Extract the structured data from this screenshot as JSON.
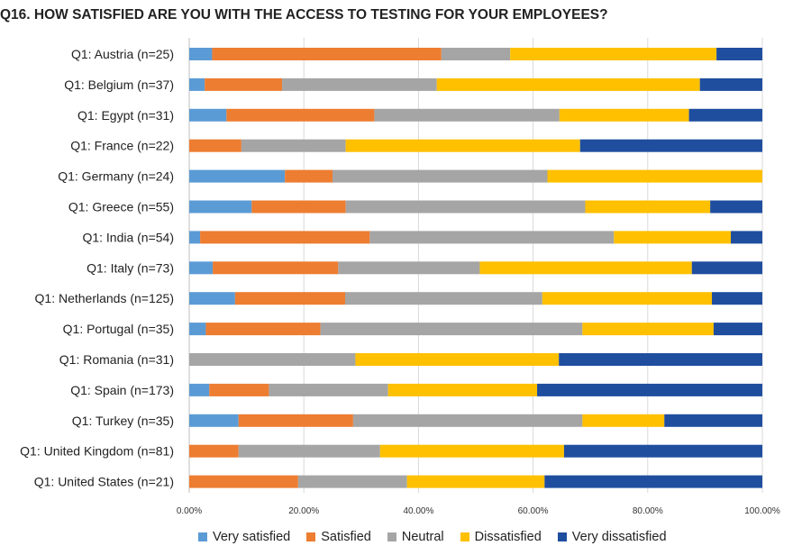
{
  "chart_data": {
    "type": "bar",
    "orientation": "horizontal",
    "stacked": true,
    "title": "Q16. HOW SATISFIED ARE YOU WITH THE ACCESS TO TESTING FOR YOUR EMPLOYEES?",
    "xlabel": "",
    "ylabel": "",
    "xlim": [
      0,
      100
    ],
    "x_ticks": [
      "0.00%",
      "20.00%",
      "40.00%",
      "60.00%",
      "80.00%",
      "100.00%"
    ],
    "grid": true,
    "legend_position": "bottom",
    "categories": [
      "Q1: Austria (n=25)",
      "Q1: Belgium (n=37)",
      "Q1: Egypt (n=31)",
      "Q1: France (n=22)",
      "Q1: Germany (n=24)",
      "Q1: Greece (n=55)",
      "Q1: India (n=54)",
      "Q1: Italy (n=73)",
      "Q1: Netherlands (n=125)",
      "Q1: Portugal (n=35)",
      "Q1: Romania (n=31)",
      "Q1: Spain (n=173)",
      "Q1: Turkey (n=35)",
      "Q1: United Kingdom (n=81)",
      "Q1: United States (n=21)"
    ],
    "series": [
      {
        "name": "Very satisfied",
        "color": "#5B9BD5",
        "values": [
          4,
          2.7,
          6.5,
          0,
          16.7,
          10.9,
          1.9,
          4.1,
          8,
          2.9,
          0,
          3.5,
          8.6,
          0,
          0
        ]
      },
      {
        "name": "Satisfied",
        "color": "#ED7D31",
        "values": [
          40,
          13.5,
          25.8,
          9.1,
          8.3,
          16.4,
          29.6,
          21.9,
          19.2,
          20,
          0,
          10.4,
          20,
          8.6,
          19
        ]
      },
      {
        "name": "Neutral",
        "color": "#A5A5A5",
        "values": [
          12,
          27,
          32.3,
          18.2,
          37.5,
          41.8,
          42.6,
          24.7,
          34.4,
          45.7,
          29,
          20.8,
          40,
          24.7,
          19
        ]
      },
      {
        "name": "Dissatisfied",
        "color": "#FFC000",
        "values": [
          36,
          45.9,
          22.6,
          40.9,
          37.5,
          21.8,
          20.4,
          37,
          29.6,
          22.9,
          35.5,
          26,
          14.3,
          32.1,
          24
        ]
      },
      {
        "name": "Very dissatisfied",
        "color": "#1F4E9F",
        "values": [
          8,
          10.9,
          12.8,
          31.8,
          0,
          9.1,
          5.5,
          12.3,
          8.8,
          8.5,
          35.5,
          39.3,
          17.1,
          34.6,
          38
        ]
      }
    ]
  }
}
